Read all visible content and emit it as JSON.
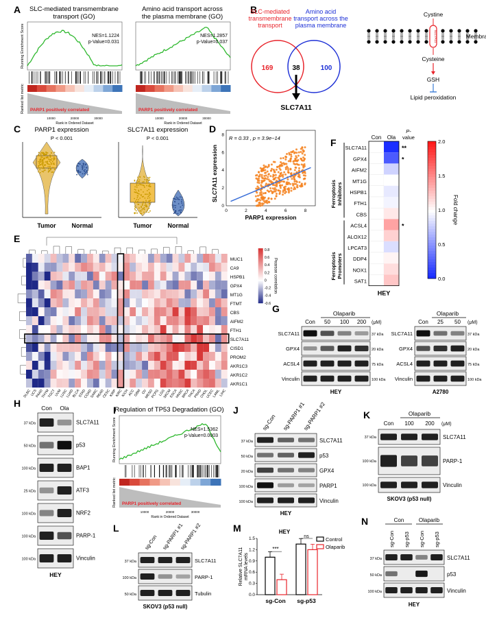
{
  "panel_letters": [
    "A",
    "B",
    "C",
    "D",
    "E",
    "F",
    "G",
    "H",
    "I",
    "J",
    "K",
    "L",
    "M",
    "N"
  ],
  "A": {
    "plots": [
      {
        "title1": "SLC-mediated transmembrane",
        "title2": "transport (GO)",
        "nes": "NES=1.1224",
        "pval": "p-Value=0.031",
        "ylabel": "Running Enrichment Score",
        "ylabel2": "Ranked list metric",
        "corr": "PARP1 positively correlated",
        "xlabel": "Rank in Ordered Dataset",
        "xticks": [
          "10000",
          "20000",
          "30000"
        ]
      },
      {
        "title1": "Amino acid transport across",
        "title2": "the plasma membrane (GO)",
        "nes": "NES=1.2857",
        "pval": "p-Value=0.037",
        "ylabel": "",
        "ylabel2": "",
        "corr": "PARP1 positively correlated",
        "xlabel": "Rank in Ordered Dataset",
        "xticks": [
          "10000",
          "20000",
          "30000"
        ]
      }
    ]
  },
  "B": {
    "left_label": [
      "SLC-mediated",
      "transmembrane",
      "transport"
    ],
    "right_label": [
      "Amino acid",
      "transport across the",
      "plasma membrane"
    ],
    "left_count": "169",
    "overlap": "38",
    "right_count": "100",
    "gene": "SLC7A11",
    "pathway": {
      "cystine": "Cystine",
      "transporter": "SLC7A11",
      "membrane": "Membrane",
      "cysteine": "Cysteine",
      "gsh": "GSH",
      "lipid": "Lipid peroxidation"
    },
    "colors": {
      "left": "#e8232a",
      "right": "#1c2fd6"
    }
  },
  "C": {
    "plots": [
      {
        "title": "PARP1 expression",
        "pval": "P < 0.001",
        "groups": [
          "Tumor",
          "Normal"
        ]
      },
      {
        "title": "SLC7A11 expression",
        "pval": "P < 0.001",
        "groups": [
          "Tumor",
          "Normal"
        ]
      }
    ]
  },
  "D": {
    "stat": "R = 0.33 , p = 3.9e−14",
    "xlabel": "PARP1 expression",
    "ylabel": "SLC7A11 expression",
    "xticks": [
      "0",
      "2",
      "4",
      "6",
      "8"
    ],
    "yticks": [
      "0",
      "2",
      "4",
      "6",
      "8"
    ]
  },
  "E": {
    "rows": [
      "MUC1",
      "CA9",
      "HSPB1",
      "GPX4",
      "MT1G",
      "FTMT",
      "CBS",
      "AIFM2",
      "FTH1",
      "SLC7A11",
      "CISD1",
      "PROM2",
      "AKR1C3",
      "AKR1C2",
      "AKR1C1"
    ],
    "cols": [
      "DLBC",
      "UCS",
      "PAAD",
      "THYM",
      "TGCT",
      "UVM",
      "LUSC",
      "LUAD",
      "BLCA",
      "STAD",
      "COAD",
      "SARC",
      "READ",
      "CESC",
      "KIRP",
      "KIRC",
      "KICH",
      "ACC",
      "GBM",
      "OV",
      "MESO",
      "PCPG",
      "LGG",
      "SKCM",
      "ESCA",
      "HNSC",
      "BRCA",
      "THCA",
      "PRAD",
      "CHOL",
      "UCEC",
      "LAML",
      "LIHC"
    ],
    "legend_title": "Pearson correlation",
    "legend_ticks": [
      "0.8",
      "0.6",
      "0.4",
      "0.2",
      "0",
      "-0.2",
      "-0.4",
      "-0.6"
    ]
  },
  "F": {
    "cols": [
      "Con",
      "Ola"
    ],
    "pcol": [
      "P-",
      "value"
    ],
    "inhibitors_label": [
      "Ferroptosis",
      "Inhibitors"
    ],
    "promoters_label": [
      "Ferroptosis",
      "Promoters"
    ],
    "genes": [
      "SLC7A11",
      "GPX4",
      "AIFM2",
      "MT1G",
      "HSPB1",
      "FTH1",
      "CBS",
      "ACSL4",
      "ALOX12",
      "LPCAT3",
      "DDP4",
      "NOX1",
      "SAT1"
    ],
    "ola_fc": [
      0.05,
      0.25,
      0.8,
      1.0,
      0.9,
      0.95,
      1.1,
      1.4,
      1.2,
      0.85,
      1.05,
      1.15,
      1.25
    ],
    "sig": [
      "**",
      "*",
      "",
      "",
      "",
      "",
      "",
      "*",
      "",
      "",
      "",
      "",
      ""
    ],
    "scale_ticks": [
      "2.0",
      "1.5",
      "1.0",
      "0.5",
      "0.0"
    ],
    "scale_title": "Fold change",
    "cell": "HEY"
  },
  "G": {
    "drug": "Olaparib",
    "left": {
      "lanes": [
        "Con",
        "50",
        "100",
        "200"
      ],
      "unit": "(μM)",
      "cell": "HEY",
      "proteins": [
        "SLC7A11",
        "GPX4",
        "ACSL4",
        "Vinculin"
      ],
      "kda": [
        "37 kDa",
        "20 kDa",
        "75 kDa",
        "100 kDa"
      ]
    },
    "right": {
      "lanes": [
        "Con",
        "25",
        "50"
      ],
      "unit": "(μM)",
      "cell": "A2780",
      "proteins": [
        "SLC7A11",
        "GPX4",
        "ACSL4",
        "Vinculin"
      ],
      "kda": [
        "37 kDa",
        "20 kDa",
        "75 kDa",
        "100 kDa"
      ]
    }
  },
  "H": {
    "lanes": [
      "Con",
      "Ola"
    ],
    "proteins": [
      "SLC7A11",
      "p53",
      "BAP1",
      "ATF3",
      "NRF2",
      "PARP-1",
      "Vinculin"
    ],
    "kda": [
      "37 kDa",
      "50 kDa",
      "100 kDa",
      "25 kDa",
      "100 kDa",
      "100 kDa",
      "100 kDa"
    ],
    "cell": "HEY"
  },
  "I": {
    "title": "Regulation of TP53 Degradation (GO)",
    "nes": "NES=1.5362",
    "pval": "p-Value=0.0003",
    "ylabel": "Running Enrichment Score",
    "ylabel2": "Ranked list metric",
    "corr": "PARP1 positively correlated",
    "xlabel": "Rank in Ordered Dataset",
    "xticks": [
      "10000",
      "20000",
      "30000"
    ]
  },
  "J": {
    "lanes": [
      "sg-Con",
      "sg-PARP1 #1",
      "sg-PARP1 #2"
    ],
    "proteins": [
      "SLC7A11",
      "p53",
      "GPX4",
      "PARP1",
      "Vinculin"
    ],
    "kda": [
      "37 kDa",
      "50 kDa",
      "20 kDa",
      "100 kDa",
      "100 kDa"
    ],
    "cell": "HEY"
  },
  "K": {
    "drug": "Olaparib",
    "lanes": [
      "Con",
      "100",
      "200"
    ],
    "unit": "(μM)",
    "proteins": [
      "SLC7A11",
      "PARP-1",
      "Vinculin"
    ],
    "kda": [
      "37 kDa",
      "100 kDa",
      "100 kDa"
    ],
    "cell": "SKOV3 (p53 null)"
  },
  "L": {
    "lanes": [
      "sg-Con",
      "sg-PARP1 #1",
      "sg-PARP1 #2"
    ],
    "proteins": [
      "SLC7A11",
      "PARP-1",
      "Tubulin"
    ],
    "kda": [
      "37 kDa",
      "100 kDa",
      "50 kDa"
    ],
    "cell": "SKOV3 (p53 null)"
  },
  "M": {
    "title": "HEY",
    "ylabel": "Relative SLC7A11 mRNA levels",
    "yticks": [
      "0.0",
      "0.3",
      "0.6",
      "0.9",
      "1.2",
      "1.5"
    ],
    "groups": [
      "sg-Con",
      "sg-p53"
    ],
    "legend": [
      "Control",
      "Olaparib"
    ],
    "sig": [
      "***",
      "ns"
    ],
    "chart_data": {
      "type": "bar",
      "categories": [
        "sg-Con",
        "sg-p53"
      ],
      "series": [
        {
          "name": "Control",
          "values": [
            1.0,
            1.35
          ]
        },
        {
          "name": "Olaparib",
          "values": [
            0.4,
            1.2
          ]
        }
      ],
      "ylabel": "Relative SLC7A11 mRNA levels",
      "ylim": [
        0,
        1.5
      ]
    }
  },
  "N": {
    "groups": [
      "Con",
      "Olaparib"
    ],
    "lanes": [
      "sg-Con",
      "sg-p53",
      "sg-Con",
      "sg-p53"
    ],
    "proteins": [
      "SLC7A11",
      "p53",
      "Vinculin"
    ],
    "kda": [
      "37 kDa",
      "50 kDa",
      "100 kDa"
    ],
    "cell": "HEY"
  }
}
